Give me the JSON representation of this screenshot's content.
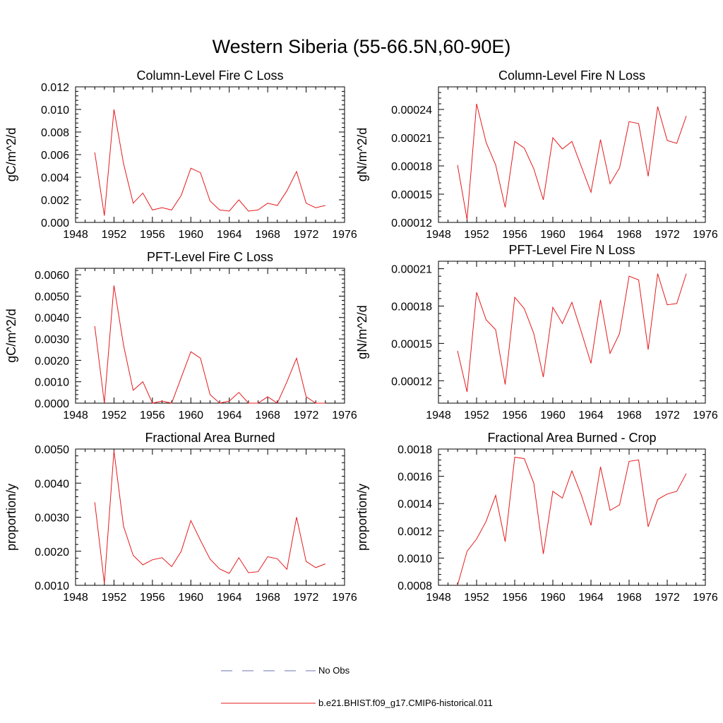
{
  "title": "Western Siberia (55-66.5N,60-90E)",
  "colors": {
    "model": "#e41a1c",
    "obs": "#6f73b3",
    "axis": "#000000"
  },
  "legend": {
    "obs_label": "No Obs",
    "model_label": "b.e21.BHIST.f09_g17.CMIP6-historical.011"
  },
  "chart_data": [
    {
      "type": "line",
      "title": "Column-Level Fire C Loss",
      "ylabel": "gC/m^2/d",
      "xlim": [
        1948,
        1976
      ],
      "x_ticks": [
        1948,
        1952,
        1956,
        1960,
        1964,
        1968,
        1972,
        1976
      ],
      "ylim": [
        0,
        0.012
      ],
      "y_ticks": [
        "0.000",
        "0.002",
        "0.004",
        "0.006",
        "0.008",
        "0.010",
        "0.012"
      ],
      "x": [
        1950,
        1951,
        1952,
        1953,
        1954,
        1955,
        1956,
        1957,
        1958,
        1959,
        1960,
        1961,
        1962,
        1963,
        1964,
        1965,
        1966,
        1967,
        1968,
        1969,
        1970,
        1971,
        1972,
        1973,
        1974
      ],
      "values": [
        0.0062,
        0.0006,
        0.01,
        0.0052,
        0.0017,
        0.0026,
        0.0011,
        0.0013,
        0.0011,
        0.0024,
        0.0048,
        0.0044,
        0.0019,
        0.0011,
        0.001,
        0.002,
        0.001,
        0.0011,
        0.0017,
        0.0015,
        0.0028,
        0.0045,
        0.0017,
        0.0013,
        0.0015
      ]
    },
    {
      "type": "line",
      "title": "Column-Level Fire N Loss",
      "ylabel": "gN/m^2/d",
      "xlim": [
        1948,
        1976
      ],
      "x_ticks": [
        1948,
        1952,
        1956,
        1960,
        1964,
        1968,
        1972,
        1976
      ],
      "ylim": [
        0.00012,
        0.000264
      ],
      "y_ticks": [
        "0.00012",
        "0.00015",
        "0.00018",
        "0.00021",
        "0.00024"
      ],
      "x": [
        1950,
        1951,
        1952,
        1953,
        1954,
        1955,
        1956,
        1957,
        1958,
        1959,
        1960,
        1961,
        1962,
        1963,
        1964,
        1965,
        1966,
        1967,
        1968,
        1969,
        1970,
        1971,
        1972,
        1973,
        1974
      ],
      "values": [
        0.000181,
        0.000123,
        0.000246,
        0.000205,
        0.000181,
        0.000136,
        0.000206,
        0.000199,
        0.000177,
        0.000144,
        0.00021,
        0.000198,
        0.000206,
        0.000179,
        0.000152,
        0.000208,
        0.000161,
        0.000178,
        0.000227,
        0.000225,
        0.000169,
        0.000243,
        0.000207,
        0.000204,
        0.000233
      ]
    },
    {
      "type": "line",
      "title": "PFT-Level Fire C Loss",
      "ylabel": "gC/m^2/d",
      "xlim": [
        1948,
        1976
      ],
      "x_ticks": [
        1948,
        1952,
        1956,
        1960,
        1964,
        1968,
        1972,
        1976
      ],
      "ylim": [
        0,
        0.0063
      ],
      "y_ticks": [
        "0.0000",
        "0.0010",
        "0.0020",
        "0.0030",
        "0.0040",
        "0.0050",
        "0.0060"
      ],
      "x": [
        1950,
        1951,
        1952,
        1953,
        1954,
        1955,
        1956,
        1957,
        1958,
        1959,
        1960,
        1961,
        1962,
        1963,
        1964,
        1965,
        1966,
        1967,
        1968,
        1969,
        1970,
        1971,
        1972,
        1973,
        1974
      ],
      "values": [
        0.0036,
        0.0,
        0.0055,
        0.0027,
        0.0006,
        0.001,
        0.0,
        0.0001,
        0.0,
        0.0012,
        0.0024,
        0.0021,
        0.0004,
        0.0,
        0.0001,
        0.0005,
        0.0,
        0.0,
        0.0003,
        0.0,
        0.001,
        0.0021,
        0.0003,
        0.0,
        0.0
      ]
    },
    {
      "type": "line",
      "title": "PFT-Level Fire N Loss",
      "ylabel": "gN/m^2/d",
      "xlim": [
        1948,
        1976
      ],
      "x_ticks": [
        1948,
        1952,
        1956,
        1960,
        1964,
        1968,
        1972,
        1976
      ],
      "ylim": [
        0.000102,
        0.000216
      ],
      "y_ticks": [
        "0.00012",
        "0.00015",
        "0.00018",
        "0.00021"
      ],
      "x": [
        1950,
        1951,
        1952,
        1953,
        1954,
        1955,
        1956,
        1957,
        1958,
        1959,
        1960,
        1961,
        1962,
        1963,
        1964,
        1965,
        1966,
        1967,
        1968,
        1969,
        1970,
        1971,
        1972,
        1973,
        1974
      ],
      "values": [
        0.000144,
        0.000111,
        0.000191,
        0.000169,
        0.000161,
        0.000117,
        0.000187,
        0.000178,
        0.000158,
        0.000123,
        0.000179,
        0.000166,
        0.000183,
        0.000159,
        0.000134,
        0.000185,
        0.000142,
        0.000158,
        0.000204,
        0.000201,
        0.000145,
        0.000206,
        0.000181,
        0.000182,
        0.000206
      ]
    },
    {
      "type": "line",
      "title": "Fractional Area Burned",
      "ylabel": "proportion/y",
      "xlim": [
        1948,
        1976
      ],
      "x_ticks": [
        1948,
        1952,
        1956,
        1960,
        1964,
        1968,
        1972,
        1976
      ],
      "ylim": [
        0.001,
        0.005
      ],
      "y_ticks": [
        "0.0010",
        "0.0020",
        "0.0030",
        "0.0040",
        "0.0050"
      ],
      "x": [
        1950,
        1951,
        1952,
        1953,
        1954,
        1955,
        1956,
        1957,
        1958,
        1959,
        1960,
        1961,
        1962,
        1963,
        1964,
        1965,
        1966,
        1967,
        1968,
        1969,
        1970,
        1971,
        1972,
        1973,
        1974
      ],
      "values": [
        0.00344,
        0.00105,
        0.00495,
        0.00273,
        0.00188,
        0.0016,
        0.00175,
        0.00181,
        0.00155,
        0.002,
        0.0029,
        0.00232,
        0.00177,
        0.00148,
        0.00135,
        0.00181,
        0.00137,
        0.0014,
        0.00184,
        0.00178,
        0.00147,
        0.003,
        0.0017,
        0.00152,
        0.00163
      ]
    },
    {
      "type": "line",
      "title": "Fractional Area Burned - Crop",
      "ylabel": "proportion/y",
      "xlim": [
        1948,
        1976
      ],
      "x_ticks": [
        1948,
        1952,
        1956,
        1960,
        1964,
        1968,
        1972,
        1976
      ],
      "ylim": [
        0.0008,
        0.0018
      ],
      "y_ticks": [
        "0.0008",
        "0.0010",
        "0.0012",
        "0.0014",
        "0.0016",
        "0.0018"
      ],
      "x": [
        1950,
        1951,
        1952,
        1953,
        1954,
        1955,
        1956,
        1957,
        1958,
        1959,
        1960,
        1961,
        1962,
        1963,
        1964,
        1965,
        1966,
        1967,
        1968,
        1969,
        1970,
        1971,
        1972,
        1973,
        1974
      ],
      "values": [
        0.0008,
        0.00105,
        0.00114,
        0.00127,
        0.00146,
        0.00112,
        0.00174,
        0.00173,
        0.00155,
        0.00103,
        0.00149,
        0.00144,
        0.00164,
        0.00146,
        0.00124,
        0.00167,
        0.00135,
        0.00139,
        0.00171,
        0.00172,
        0.00123,
        0.00143,
        0.00147,
        0.00149,
        0.00162
      ]
    }
  ]
}
